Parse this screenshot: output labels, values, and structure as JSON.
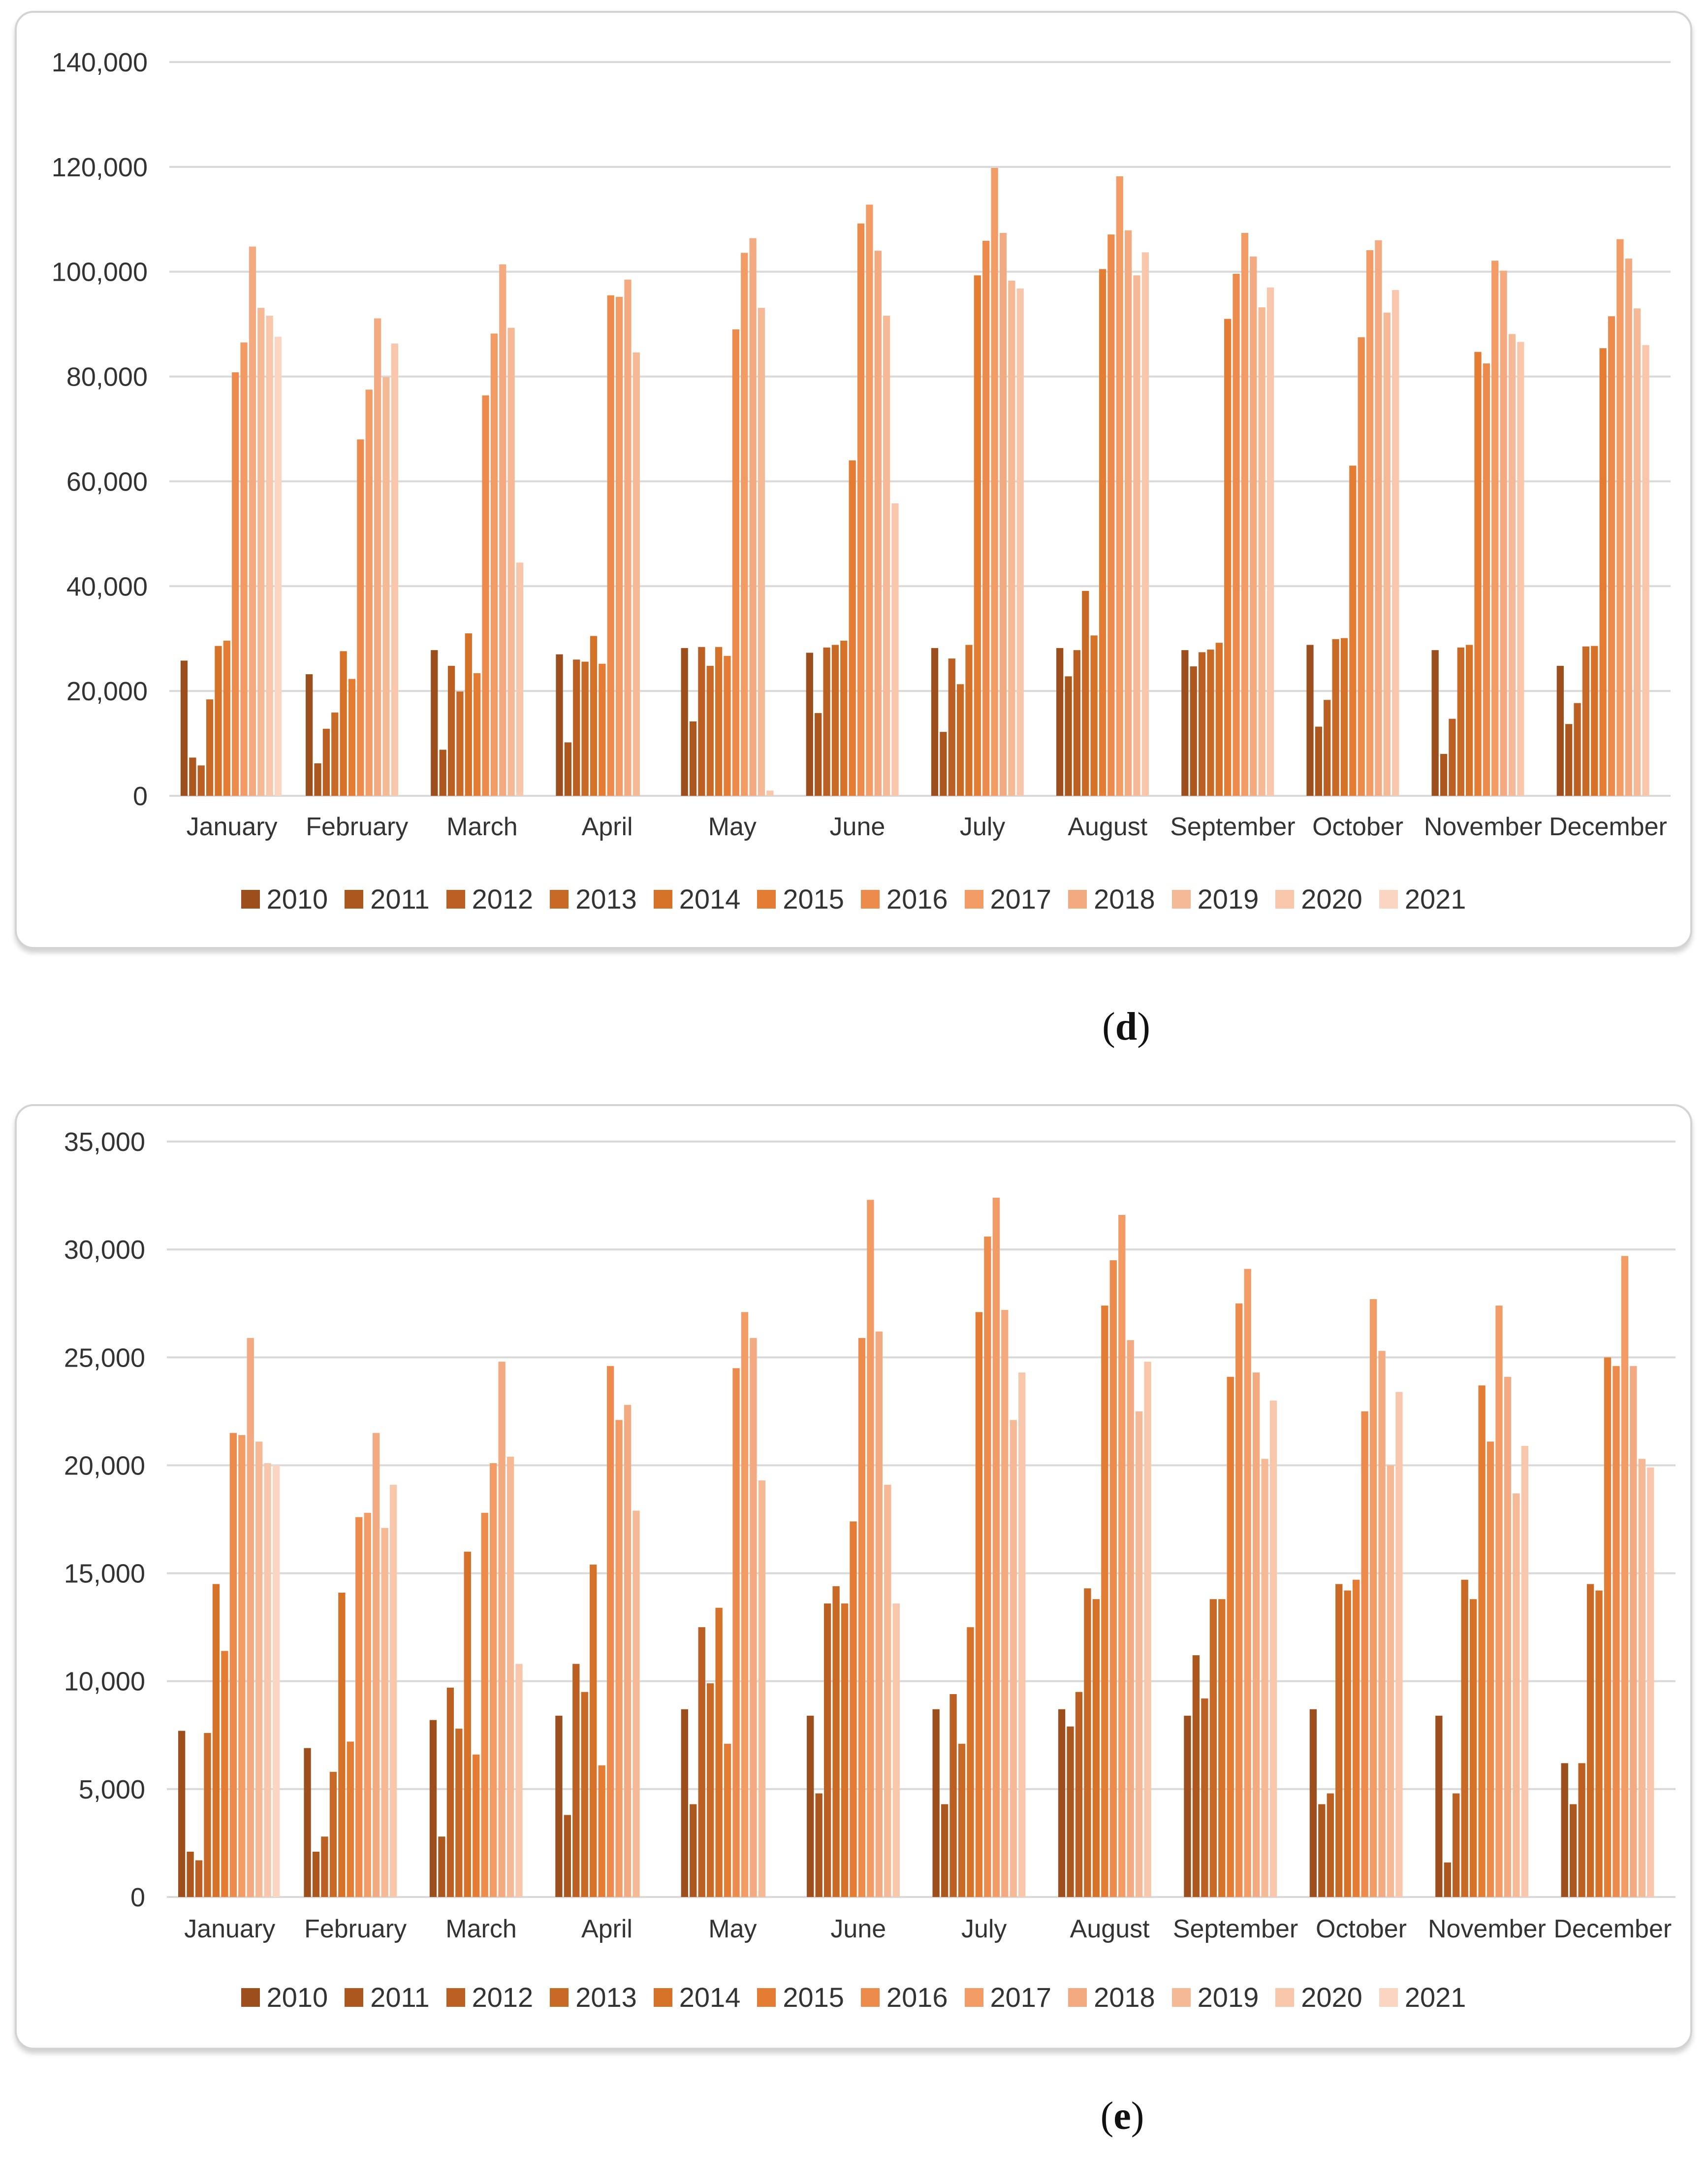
{
  "chart_data": [
    {
      "panel": "d",
      "type": "bar",
      "title": "",
      "xlabel": "",
      "ylabel": "",
      "ylim": [
        0,
        140000
      ],
      "yticks": [
        "0",
        "20,000",
        "40,000",
        "60,000",
        "80,000",
        "100,000",
        "120,000",
        "140,000"
      ],
      "ytick_values": [
        0,
        20000,
        40000,
        60000,
        80000,
        100000,
        120000,
        140000
      ],
      "grid": true,
      "legend_position": "bottom",
      "categories": [
        "January",
        "February",
        "March",
        "April",
        "May",
        "June",
        "July",
        "August",
        "September",
        "October",
        "November",
        "December"
      ],
      "series": [
        {
          "name": "2010",
          "color": "#9c4f1c",
          "values": [
            25800,
            23200,
            27800,
            27000,
            28200,
            27300,
            28200,
            28200,
            27800,
            28800,
            27800,
            24800
          ]
        },
        {
          "name": "2011",
          "color": "#ab571e",
          "values": [
            7300,
            6200,
            8800,
            10200,
            14200,
            15800,
            12200,
            22800,
            24700,
            13200,
            8000,
            13700
          ]
        },
        {
          "name": "2012",
          "color": "#bb5f22",
          "values": [
            5800,
            12800,
            24800,
            26000,
            28400,
            28300,
            26200,
            27800,
            27400,
            18300,
            14700,
            17700
          ]
        },
        {
          "name": "2013",
          "color": "#c86925",
          "values": [
            18400,
            15900,
            19900,
            25600,
            24800,
            28800,
            21300,
            39100,
            27900,
            29900,
            28300,
            28500
          ]
        },
        {
          "name": "2014",
          "color": "#d67128",
          "values": [
            28600,
            27600,
            31000,
            30500,
            28400,
            29600,
            28800,
            30600,
            29200,
            30100,
            28800,
            28600
          ]
        },
        {
          "name": "2015",
          "color": "#e57c34",
          "values": [
            29600,
            22300,
            23400,
            25200,
            26700,
            64000,
            99300,
            100500,
            91000,
            63000,
            84700,
            85400
          ]
        },
        {
          "name": "2016",
          "color": "#ed8b4c",
          "values": [
            80800,
            68000,
            76400,
            95500,
            89000,
            109200,
            105900,
            107100,
            99600,
            87500,
            82500,
            91500
          ]
        },
        {
          "name": "2017",
          "color": "#f29b65",
          "values": [
            86500,
            77500,
            88200,
            95200,
            103600,
            112800,
            119800,
            118200,
            107400,
            104100,
            102100,
            106200
          ]
        },
        {
          "name": "2018",
          "color": "#f4aa80",
          "values": [
            104800,
            91100,
            101400,
            98500,
            106400,
            104000,
            107400,
            107900,
            102900,
            106000,
            100200,
            102500
          ]
        },
        {
          "name": "2019",
          "color": "#f6b995",
          "values": [
            93100,
            79900,
            89300,
            84600,
            93100,
            91600,
            98300,
            99300,
            93200,
            92200,
            88100,
            93000
          ]
        },
        {
          "name": "2020",
          "color": "#f8c7ab",
          "values": [
            91600,
            86300,
            44500,
            0,
            1000,
            55800,
            96800,
            103700,
            97000,
            96500,
            86600,
            86000
          ]
        },
        {
          "name": "2021",
          "color": "#fad6c2",
          "values": [
            87600,
            0,
            0,
            0,
            0,
            0,
            0,
            0,
            0,
            0,
            0,
            0
          ]
        }
      ]
    },
    {
      "panel": "e",
      "type": "bar",
      "title": "",
      "xlabel": "",
      "ylabel": "",
      "ylim": [
        0,
        35000
      ],
      "yticks": [
        "0",
        "5,000",
        "10,000",
        "15,000",
        "20,000",
        "25,000",
        "30,000",
        "35,000"
      ],
      "ytick_values": [
        0,
        5000,
        10000,
        15000,
        20000,
        25000,
        30000,
        35000
      ],
      "grid": true,
      "legend_position": "bottom",
      "categories": [
        "January",
        "February",
        "March",
        "April",
        "May",
        "June",
        "July",
        "August",
        "September",
        "October",
        "November",
        "December"
      ],
      "series": [
        {
          "name": "2010",
          "color": "#9c4f1c",
          "values": [
            7700,
            6900,
            8200,
            8400,
            8700,
            8400,
            8700,
            8700,
            8400,
            8700,
            8400,
            6200
          ]
        },
        {
          "name": "2011",
          "color": "#ab571e",
          "values": [
            2100,
            2100,
            2800,
            3800,
            4300,
            4800,
            4300,
            7900,
            11200,
            4300,
            1600,
            4300
          ]
        },
        {
          "name": "2012",
          "color": "#bb5f22",
          "values": [
            1700,
            2800,
            9700,
            10800,
            12500,
            13600,
            9400,
            9500,
            9200,
            4800,
            4800,
            6200
          ]
        },
        {
          "name": "2013",
          "color": "#c86925",
          "values": [
            7600,
            5800,
            7800,
            9500,
            9900,
            14400,
            7100,
            14300,
            13800,
            14500,
            14700,
            14500
          ]
        },
        {
          "name": "2014",
          "color": "#d67128",
          "values": [
            14500,
            14100,
            16000,
            15400,
            13400,
            13600,
            12500,
            13800,
            13800,
            14200,
            13800,
            14200
          ]
        },
        {
          "name": "2015",
          "color": "#e57c34",
          "values": [
            11400,
            7200,
            6600,
            6100,
            7100,
            17400,
            27100,
            27400,
            24100,
            14700,
            23700,
            25000
          ]
        },
        {
          "name": "2016",
          "color": "#ed8b4c",
          "values": [
            21500,
            17600,
            17800,
            24600,
            24500,
            25900,
            30600,
            29500,
            27500,
            22500,
            21100,
            24600
          ]
        },
        {
          "name": "2017",
          "color": "#f29b65",
          "values": [
            21400,
            17800,
            20100,
            22100,
            27100,
            32300,
            32400,
            31600,
            29100,
            27700,
            27400,
            29700
          ]
        },
        {
          "name": "2018",
          "color": "#f4aa80",
          "values": [
            25900,
            21500,
            24800,
            22800,
            25900,
            26200,
            27200,
            25800,
            24300,
            25300,
            24100,
            24600
          ]
        },
        {
          "name": "2019",
          "color": "#f6b995",
          "values": [
            21100,
            17100,
            20400,
            17900,
            19300,
            19100,
            22100,
            22500,
            20300,
            20000,
            18700,
            20300
          ]
        },
        {
          "name": "2020",
          "color": "#f8c7ab",
          "values": [
            20100,
            19100,
            10800,
            0,
            0,
            13600,
            24300,
            24800,
            23000,
            23400,
            20900,
            19900
          ]
        },
        {
          "name": "2021",
          "color": "#fad6c2",
          "values": [
            20000,
            0,
            0,
            0,
            0,
            0,
            0,
            0,
            0,
            0,
            0,
            0
          ]
        }
      ]
    }
  ],
  "captions": {
    "d_open": "(",
    "d_letter": "d",
    "d_close": ")",
    "e_open": "(",
    "e_letter": "e",
    "e_close": ")"
  }
}
